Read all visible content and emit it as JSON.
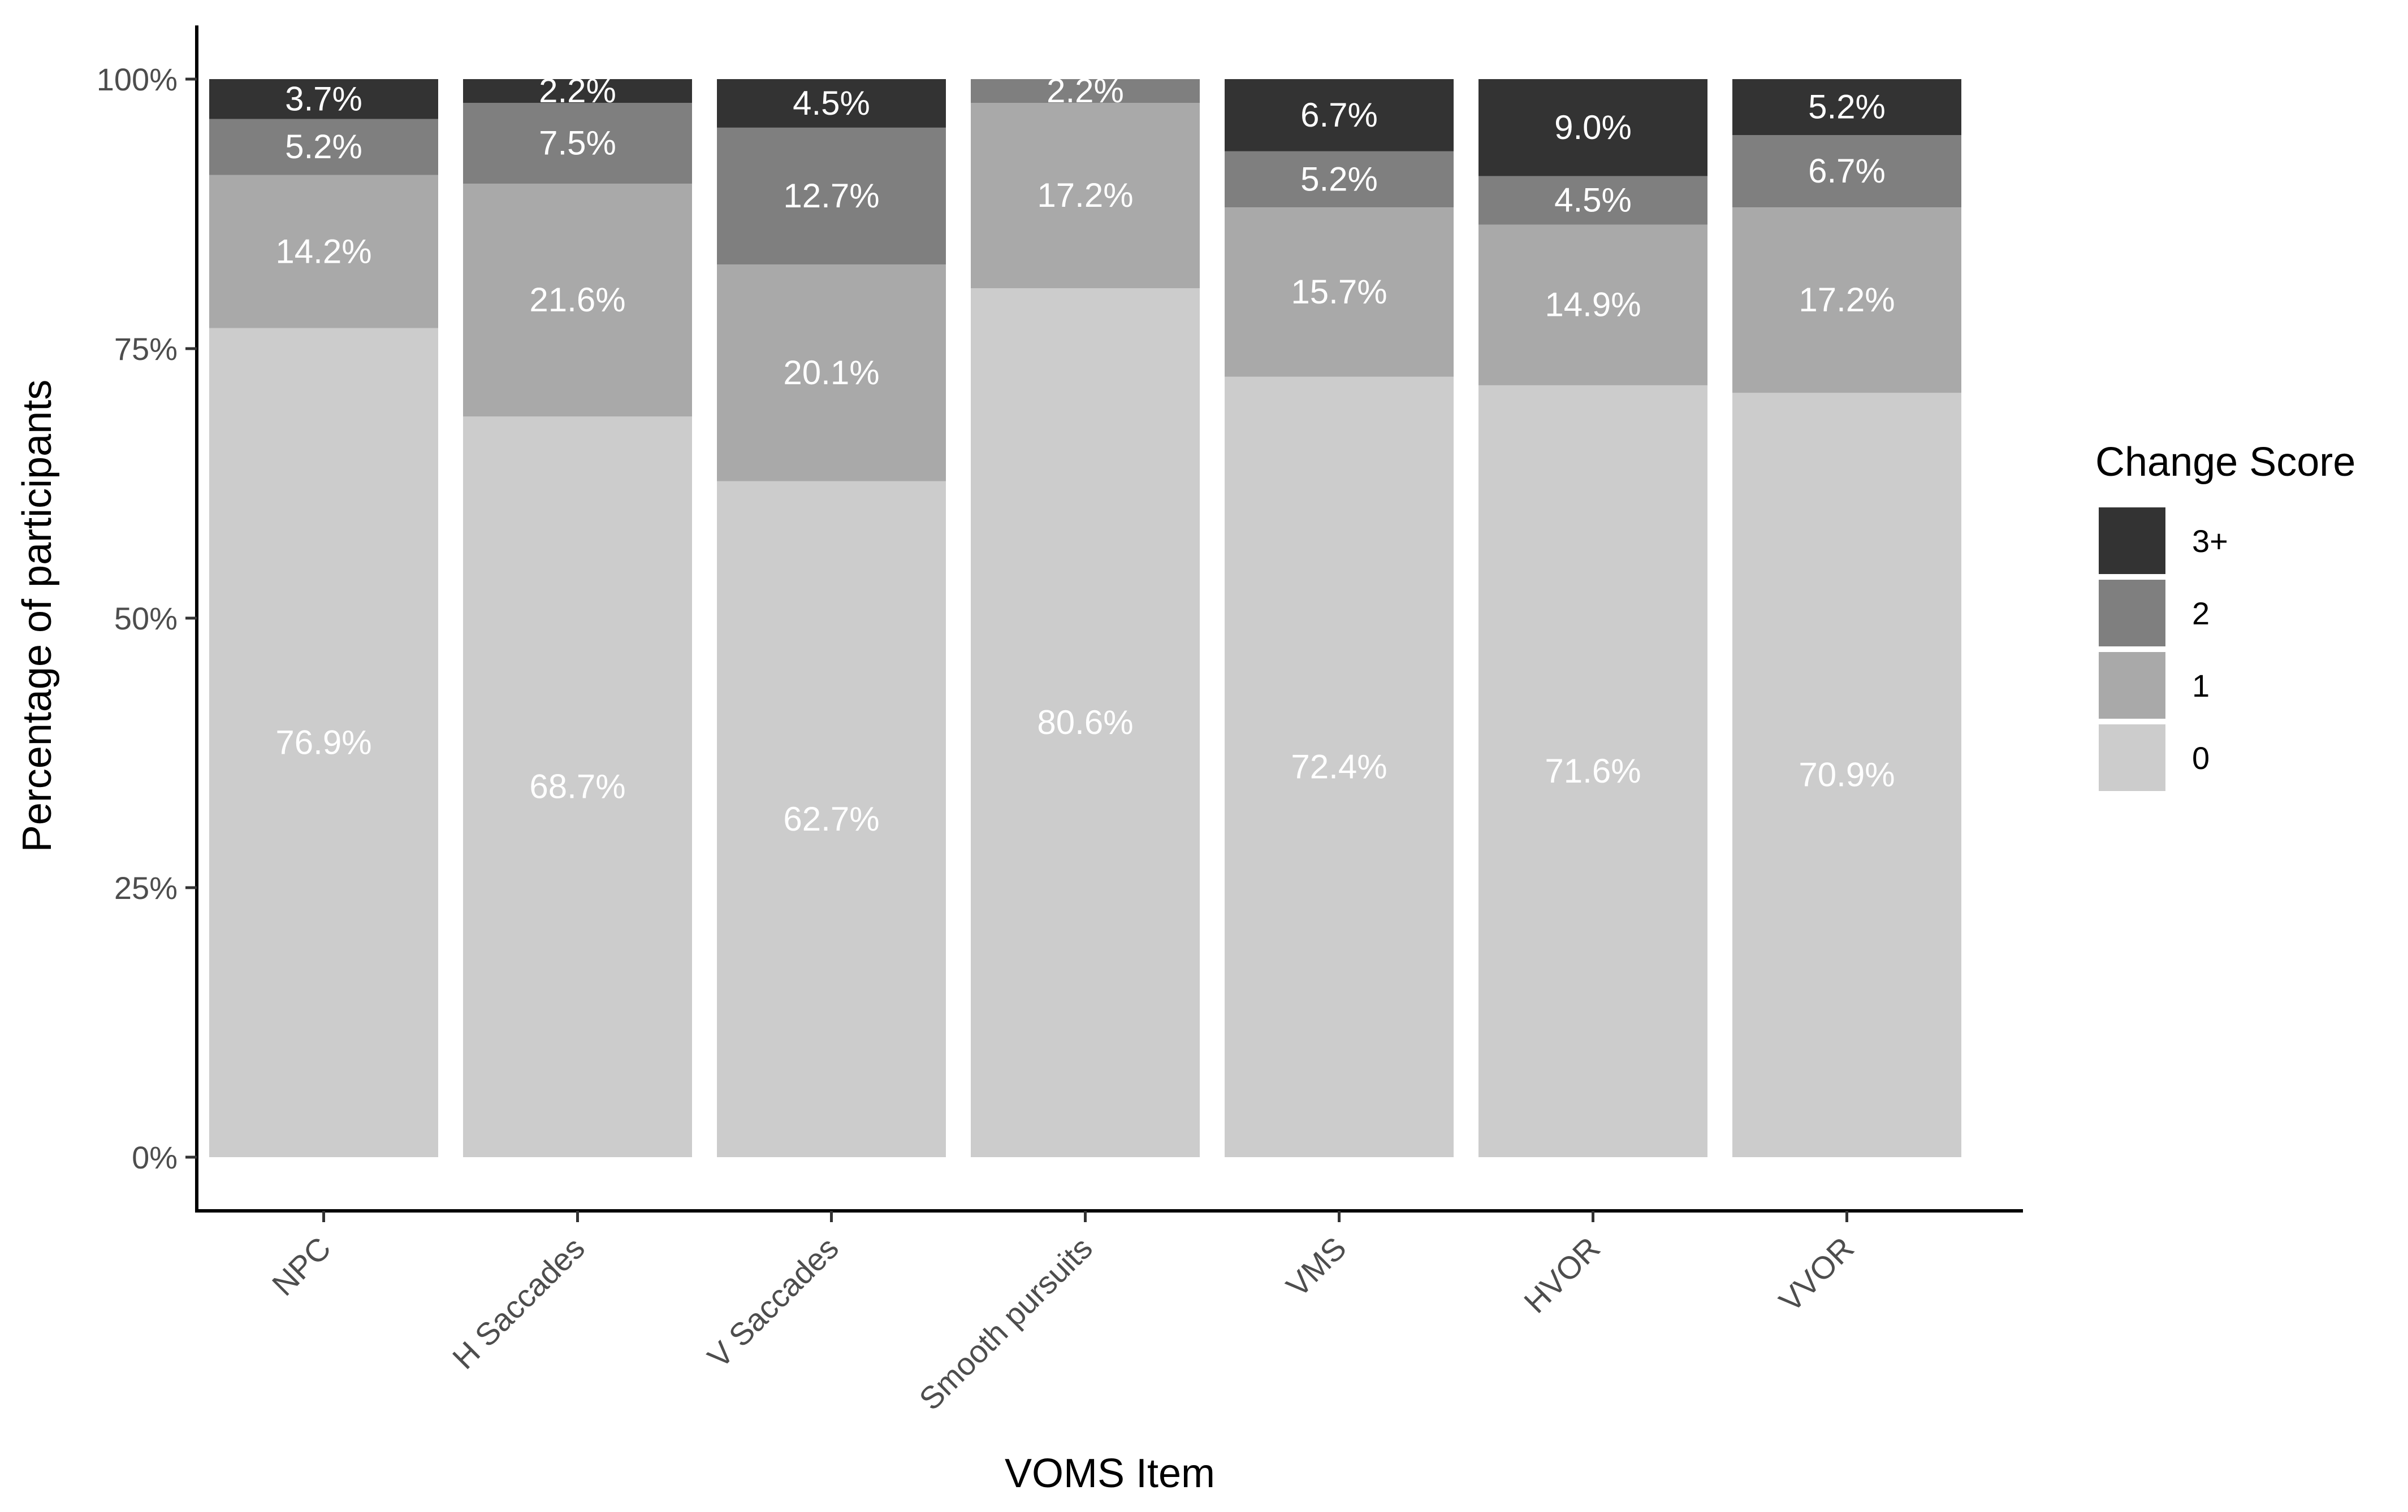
{
  "chart_data": {
    "type": "bar",
    "stacked": true,
    "orientation": "vertical",
    "title": "",
    "xlabel": "VOMS Item",
    "ylabel": "Percentage of participants",
    "ylim": [
      0,
      100
    ],
    "yticks": [
      0,
      25,
      50,
      75,
      100
    ],
    "ytick_labels": [
      "0%",
      "25%",
      "50%",
      "75%",
      "100%"
    ],
    "categories": [
      "NPC",
      "H Saccades",
      "V Saccades",
      "Smooth pursuits",
      "VMS",
      "HVOR",
      "VVOR"
    ],
    "series": [
      {
        "name": "0",
        "color": "#cccccc",
        "values": [
          76.9,
          68.7,
          62.7,
          80.6,
          72.4,
          71.6,
          70.9
        ],
        "labels": [
          "76.9%",
          "68.7%",
          "62.7%",
          "80.6%",
          "72.4%",
          "71.6%",
          "70.9%"
        ]
      },
      {
        "name": "1",
        "color": "#a9a9a9",
        "values": [
          14.2,
          21.6,
          20.1,
          17.2,
          15.7,
          14.9,
          17.2
        ],
        "labels": [
          "14.2%",
          "21.6%",
          "20.1%",
          "17.2%",
          "15.7%",
          "14.9%",
          "17.2%"
        ]
      },
      {
        "name": "2",
        "color": "#7f7f7f",
        "values": [
          5.2,
          7.5,
          12.7,
          2.2,
          5.2,
          4.5,
          6.7
        ],
        "labels": [
          "5.2%",
          "7.5%",
          "12.7%",
          "2.2%",
          "5.2%",
          "4.5%",
          "6.7%"
        ]
      },
      {
        "name": "3+",
        "color": "#333333",
        "values": [
          3.7,
          2.2,
          4.5,
          0,
          6.7,
          9.0,
          5.2
        ],
        "labels": [
          "3.7%",
          "2.2%",
          "4.5%",
          "",
          "6.7%",
          "9.0%",
          "5.2%"
        ]
      }
    ],
    "legend": {
      "title": "Change Score",
      "position": "right",
      "order": [
        "3+",
        "2",
        "1",
        "0"
      ]
    },
    "grid": false
  }
}
